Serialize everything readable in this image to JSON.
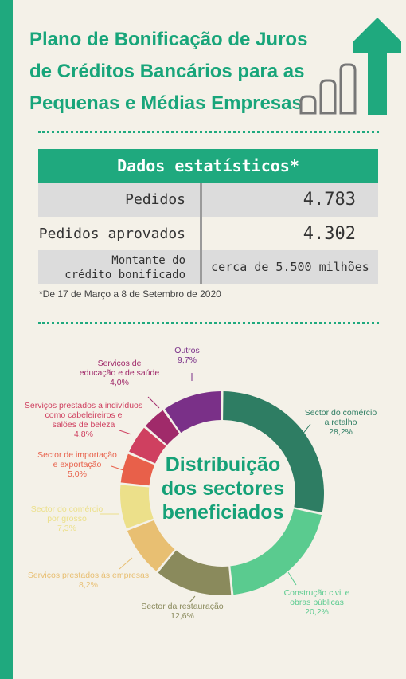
{
  "title": "Plano de Bonificação de Juros de Créditos Bancários para as Pequenas e Médias Empresas",
  "icon": "growth-bars-arrow-icon",
  "colors": {
    "accent": "#1fa97e",
    "background": "#f4f1e8",
    "row_gray": "#dcdcdc"
  },
  "stats": {
    "header": "Dados estatísticos*",
    "rows": [
      {
        "label": "Pedidos",
        "value": "4.783"
      },
      {
        "label": "Pedidos aprovados",
        "value": "4.302"
      },
      {
        "label_line1": "Montante do",
        "label_line2": "crédito bonificado",
        "value": "cerca de 5.500 milhões"
      }
    ]
  },
  "footnote": "*De 17 de Março a 8 de Setembro de 2020",
  "center_title": [
    "Distribuição",
    "dos sectores",
    "beneficiados"
  ],
  "chart_data": {
    "type": "pie",
    "title": "Distribuição dos sectores beneficiados",
    "unit": "%",
    "series": [
      {
        "label_lines": [
          "Sector do comércio",
          "a retalho"
        ],
        "value_text": "28,2%",
        "value": 28.2,
        "color": "#2e7d63"
      },
      {
        "label_lines": [
          "Construção civil e",
          "obras públicas"
        ],
        "value_text": "20,2%",
        "value": 20.2,
        "color": "#5acb8f"
      },
      {
        "label_lines": [
          "Sector da restauração"
        ],
        "value_text": "12,6%",
        "value": 12.6,
        "color": "#8a8a5c"
      },
      {
        "label_lines": [
          "Serviços prestados às empresas"
        ],
        "value_text": "8,2%",
        "value": 8.2,
        "color": "#e8bf72"
      },
      {
        "label_lines": [
          "Sector do comércio",
          "por grosso"
        ],
        "value_text": "7,3%",
        "value": 7.3,
        "color": "#ece08a"
      },
      {
        "label_lines": [
          "Sector de importação",
          "e exportação"
        ],
        "value_text": "5,0%",
        "value": 5.0,
        "color": "#e8604a"
      },
      {
        "label_lines": [
          "Serviços prestados a indivíduos",
          "como cabeleireiros e",
          "salões de beleza"
        ],
        "value_text": "4,8%",
        "value": 4.8,
        "color": "#cf4060"
      },
      {
        "label_lines": [
          "Serviços de",
          "educação e de saúde"
        ],
        "value_text": "4,0%",
        "value": 4.0,
        "color": "#a02a6a"
      },
      {
        "label_lines": [
          "Outros"
        ],
        "value_text": "9,7%",
        "value": 9.7,
        "color": "#7a3088"
      }
    ]
  }
}
